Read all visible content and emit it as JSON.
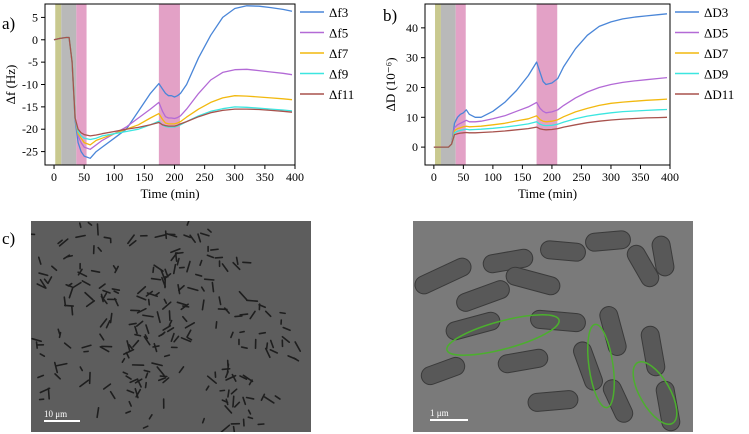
{
  "panels": {
    "a": "a)",
    "b": "b)",
    "c": "c)"
  },
  "colors": {
    "f3": "#4a86d8",
    "f5": "#b36ad6",
    "f7": "#f2b90f",
    "f9": "#3ce6e0",
    "f11": "#a8524d",
    "shade_olive": "#c9c98f",
    "shade_gray": "#b9b9b9",
    "shade_pink": "#e3a1c6",
    "frame": "#000000",
    "sem_bg": "#5c5c5c"
  },
  "chart_data": [
    {
      "type": "line",
      "panel": "a)",
      "title": "",
      "xlabel": "Time (min)",
      "ylabel": "Δf (Hz)",
      "xlim": [
        -15,
        400
      ],
      "ylim": [
        -28,
        8
      ],
      "xticks": [
        0,
        50,
        100,
        150,
        200,
        250,
        300,
        350,
        400
      ],
      "xtick_labels": [
        "0",
        "50",
        "100",
        "150",
        "200",
        "250",
        "300",
        "350",
        "400"
      ],
      "yticks": [
        5,
        0,
        -5,
        -10,
        -15,
        -20,
        -25
      ],
      "ytick_labels": [
        "5",
        "0",
        "-5",
        "-10",
        "-15",
        "-20",
        "-25"
      ],
      "shaded_regions": [
        {
          "x": [
            2,
            12
          ],
          "color": "olive"
        },
        {
          "x": [
            12,
            37
          ],
          "color": "gray"
        },
        {
          "x": [
            37,
            54
          ],
          "color": "pink"
        },
        {
          "x": [
            174,
            209
          ],
          "color": "pink"
        }
      ],
      "legend": "right",
      "series": [
        {
          "name": "Δf3",
          "key": "f3",
          "x": [
            0,
            10,
            20,
            25,
            30,
            35,
            40,
            45,
            50,
            60,
            70,
            80,
            100,
            120,
            140,
            160,
            174,
            180,
            185,
            190,
            195,
            200,
            205,
            210,
            220,
            240,
            260,
            280,
            300,
            320,
            340,
            360,
            380,
            395
          ],
          "y": [
            0,
            0.3,
            0.5,
            0.5,
            -5,
            -18,
            -23,
            -25,
            -26,
            -26.5,
            -25,
            -24,
            -22,
            -20,
            -16,
            -12,
            -9.8,
            -11,
            -12,
            -12.5,
            -12.5,
            -12.8,
            -12.5,
            -12,
            -10,
            -4,
            1,
            5,
            7,
            7.6,
            7.5,
            7.2,
            6.8,
            6.4
          ]
        },
        {
          "name": "Δf5",
          "key": "f5",
          "x": [
            0,
            10,
            20,
            25,
            30,
            35,
            40,
            45,
            50,
            60,
            70,
            80,
            100,
            120,
            140,
            160,
            174,
            180,
            185,
            190,
            195,
            200,
            205,
            210,
            220,
            240,
            260,
            280,
            300,
            320,
            340,
            360,
            380,
            395
          ],
          "y": [
            0,
            0.3,
            0.5,
            0.5,
            -5,
            -17.5,
            -21.5,
            -23,
            -24,
            -24.5,
            -23.5,
            -22.5,
            -21,
            -19.5,
            -17.5,
            -15.5,
            -14,
            -16,
            -17.2,
            -17.5,
            -17.5,
            -17.6,
            -17.4,
            -17,
            -15.5,
            -12,
            -9,
            -7.3,
            -6.7,
            -6.6,
            -6.9,
            -7.2,
            -7.5,
            -7.8
          ]
        },
        {
          "name": "Δf7",
          "key": "f7",
          "x": [
            0,
            10,
            20,
            25,
            30,
            35,
            40,
            45,
            50,
            60,
            70,
            80,
            100,
            120,
            140,
            160,
            174,
            180,
            185,
            190,
            195,
            200,
            205,
            210,
            220,
            240,
            260,
            280,
            300,
            320,
            340,
            360,
            380,
            395
          ],
          "y": [
            0,
            0.3,
            0.5,
            0.5,
            -5,
            -17.5,
            -21,
            -22,
            -23,
            -23.5,
            -22.5,
            -22,
            -21,
            -20,
            -19,
            -17.5,
            -16.5,
            -17.8,
            -18.6,
            -18.8,
            -18.8,
            -18.8,
            -18.6,
            -18.3,
            -17.3,
            -15.5,
            -14,
            -13,
            -12.5,
            -12.6,
            -12.8,
            -13,
            -13.2,
            -13.4
          ]
        },
        {
          "name": "Δf9",
          "key": "f9",
          "x": [
            0,
            10,
            20,
            25,
            30,
            35,
            40,
            45,
            50,
            60,
            70,
            80,
            100,
            120,
            140,
            160,
            174,
            180,
            185,
            190,
            195,
            200,
            205,
            210,
            220,
            240,
            260,
            280,
            300,
            320,
            340,
            360,
            380,
            395
          ],
          "y": [
            0,
            0.3,
            0.5,
            0.5,
            -5,
            -17.5,
            -20.5,
            -21.5,
            -22,
            -22.3,
            -22,
            -21.5,
            -21,
            -20.5,
            -20,
            -19,
            -18.2,
            -19.1,
            -19.4,
            -19.5,
            -19.5,
            -19.5,
            -19.3,
            -19,
            -18.3,
            -17,
            -16,
            -15.4,
            -15,
            -15.1,
            -15.3,
            -15.5,
            -15.7,
            -15.9
          ]
        },
        {
          "name": "Δf11",
          "key": "f11",
          "x": [
            0,
            10,
            20,
            25,
            30,
            35,
            40,
            45,
            50,
            60,
            70,
            80,
            100,
            120,
            140,
            160,
            174,
            180,
            185,
            190,
            195,
            200,
            205,
            210,
            220,
            240,
            260,
            280,
            300,
            320,
            340,
            360,
            380,
            395
          ],
          "y": [
            0,
            0.3,
            0.5,
            0.5,
            -5,
            -17.5,
            -20,
            -20.8,
            -21.2,
            -21.5,
            -21.3,
            -21,
            -20.5,
            -20,
            -19.6,
            -19,
            -18.5,
            -19,
            -19.2,
            -19.3,
            -19.3,
            -19.3,
            -19.1,
            -18.8,
            -18.3,
            -17.2,
            -16.3,
            -15.8,
            -15.5,
            -15.5,
            -15.6,
            -15.8,
            -16,
            -16.2
          ]
        }
      ]
    },
    {
      "type": "line",
      "panel": "b)",
      "title": "",
      "xlabel": "Time (min)",
      "ylabel": "ΔD (10⁻⁶)",
      "xlim": [
        -15,
        400
      ],
      "ylim": [
        -6,
        48
      ],
      "xticks": [
        0,
        50,
        100,
        150,
        200,
        250,
        300,
        350,
        400
      ],
      "xtick_labels": [
        "0",
        "50",
        "100",
        "150",
        "200",
        "250",
        "300",
        "350",
        "400"
      ],
      "yticks": [
        0,
        10,
        20,
        30,
        40
      ],
      "ytick_labels": [
        "0",
        "10",
        "20",
        "30",
        "40"
      ],
      "shaded_regions": [
        {
          "x": [
            2,
            12
          ],
          "color": "olive"
        },
        {
          "x": [
            12,
            37
          ],
          "color": "gray"
        },
        {
          "x": [
            37,
            54
          ],
          "color": "pink"
        },
        {
          "x": [
            174,
            209
          ],
          "color": "pink"
        }
      ],
      "legend": "right",
      "series": [
        {
          "name": "ΔD3",
          "key": "f3",
          "x": [
            0,
            10,
            20,
            25,
            30,
            35,
            40,
            45,
            50,
            55,
            60,
            70,
            80,
            100,
            120,
            140,
            160,
            174,
            180,
            185,
            190,
            200,
            210,
            220,
            240,
            260,
            280,
            300,
            320,
            340,
            360,
            380,
            395
          ],
          "y": [
            0,
            0,
            0,
            0,
            1,
            8,
            10,
            11,
            11.5,
            12.5,
            11,
            10,
            10,
            12,
            15,
            19,
            24,
            28.5,
            25,
            22,
            21,
            21.5,
            23,
            27,
            33,
            37.5,
            40.5,
            42,
            43,
            43.6,
            44,
            44.4,
            44.7
          ]
        },
        {
          "name": "ΔD5",
          "key": "f5",
          "x": [
            0,
            10,
            20,
            25,
            30,
            35,
            40,
            45,
            50,
            55,
            60,
            70,
            80,
            100,
            120,
            140,
            160,
            174,
            180,
            185,
            190,
            200,
            210,
            220,
            240,
            260,
            280,
            300,
            320,
            340,
            360,
            380,
            395
          ],
          "y": [
            0,
            0,
            0,
            0,
            1,
            6.5,
            7.5,
            8,
            8.5,
            9,
            8.5,
            8.5,
            8.7,
            9.5,
            10.5,
            12,
            13.5,
            15,
            13,
            12,
            11.5,
            11.8,
            12.5,
            14,
            16.5,
            18.5,
            20,
            21,
            21.7,
            22.2,
            22.6,
            23,
            23.3
          ]
        },
        {
          "name": "ΔD7",
          "key": "f7",
          "x": [
            0,
            10,
            20,
            25,
            30,
            35,
            40,
            45,
            50,
            55,
            60,
            70,
            80,
            100,
            120,
            140,
            160,
            174,
            180,
            185,
            190,
            200,
            210,
            220,
            240,
            260,
            280,
            300,
            320,
            340,
            360,
            380,
            395
          ],
          "y": [
            0,
            0,
            0,
            0,
            1,
            5.5,
            6.2,
            6.5,
            6.8,
            7,
            6.8,
            6.9,
            7,
            7.5,
            8,
            8.8,
            9.5,
            10.5,
            9.2,
            8.7,
            8.5,
            8.7,
            9.2,
            10.2,
            11.8,
            13,
            14,
            14.7,
            15.1,
            15.4,
            15.7,
            15.9,
            16.1
          ]
        },
        {
          "name": "ΔD9",
          "key": "f9",
          "x": [
            0,
            10,
            20,
            25,
            30,
            35,
            40,
            45,
            50,
            55,
            60,
            70,
            80,
            100,
            120,
            140,
            160,
            174,
            180,
            185,
            190,
            200,
            210,
            220,
            240,
            260,
            280,
            300,
            320,
            340,
            360,
            380,
            395
          ],
          "y": [
            0,
            0,
            0,
            0,
            1,
            4.8,
            5.3,
            5.6,
            5.8,
            6,
            5.8,
            5.9,
            6,
            6.3,
            6.7,
            7.2,
            7.8,
            8.5,
            7.7,
            7.3,
            7.2,
            7.3,
            7.7,
            8.4,
            9.5,
            10.4,
            11,
            11.5,
            11.9,
            12.1,
            12.3,
            12.5,
            12.6
          ]
        },
        {
          "name": "ΔD11",
          "key": "f11",
          "x": [
            0,
            10,
            20,
            25,
            30,
            35,
            40,
            45,
            50,
            55,
            60,
            70,
            80,
            100,
            120,
            140,
            160,
            174,
            180,
            185,
            190,
            200,
            210,
            220,
            240,
            260,
            280,
            300,
            320,
            340,
            360,
            380,
            395
          ],
          "y": [
            0,
            0,
            0,
            0,
            1,
            4.2,
            4.5,
            4.7,
            4.8,
            4.9,
            4.8,
            4.8,
            4.9,
            5.1,
            5.4,
            5.8,
            6.2,
            6.7,
            6.1,
            5.9,
            5.8,
            5.9,
            6.2,
            6.7,
            7.5,
            8.2,
            8.7,
            9.1,
            9.4,
            9.6,
            9.8,
            9.9,
            10
          ]
        }
      ]
    }
  ],
  "sem_left": {
    "scale_label": "10 μm"
  },
  "sem_right": {
    "scale_label": "1 μm"
  }
}
